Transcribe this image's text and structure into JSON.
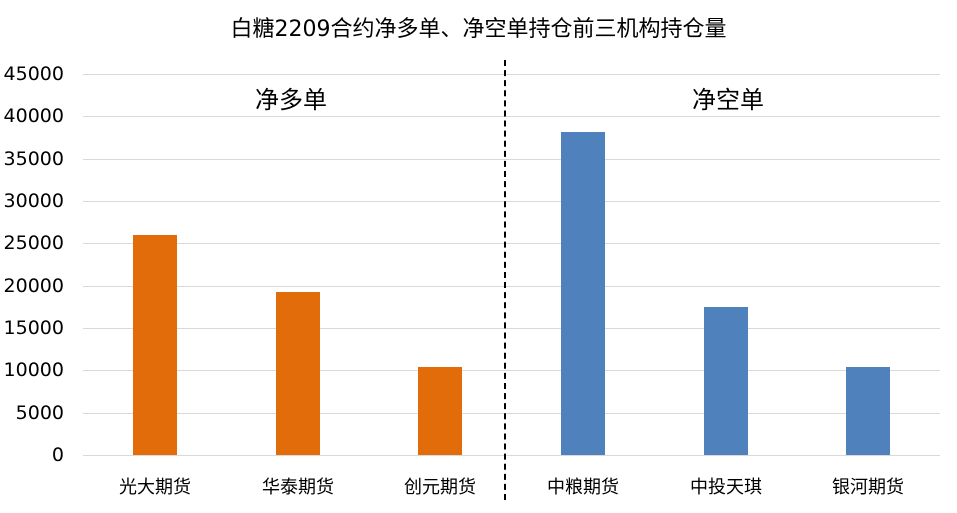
{
  "chart_data": {
    "type": "bar",
    "title": "白糖2209合约净多单、净空单持仓前三机构持仓量",
    "xlabel": "",
    "ylabel": "",
    "ylim": [
      0,
      45000
    ],
    "yticks": [
      0,
      5000,
      10000,
      15000,
      20000,
      25000,
      30000,
      35000,
      40000,
      45000
    ],
    "grid": true,
    "legend": "none",
    "categories": [
      "光大期货",
      "华泰期货",
      "创元期货",
      "中粮期货",
      "中投天琪",
      "银河期货"
    ],
    "values": [
      26000,
      19300,
      10400,
      38100,
      17500,
      10400
    ],
    "groups": [
      {
        "name": "净多单",
        "categories": [
          "光大期货",
          "华泰期货",
          "创元期货"
        ],
        "values": [
          26000,
          19300,
          10400
        ],
        "color": "#E36C0A"
      },
      {
        "name": "净空单",
        "categories": [
          "中粮期货",
          "中投天琪",
          "银河期货"
        ],
        "values": [
          38100,
          17500,
          10400
        ],
        "color": "#4F81BD"
      }
    ],
    "annotations": [
      "净多单",
      "净空单"
    ],
    "divider": "dashed vertical line between 创元期货 and 中粮期货"
  },
  "ui": {
    "ytick_labels": [
      "0",
      "5000",
      "10000",
      "15000",
      "20000",
      "25000",
      "30000",
      "35000",
      "40000",
      "45000"
    ]
  }
}
